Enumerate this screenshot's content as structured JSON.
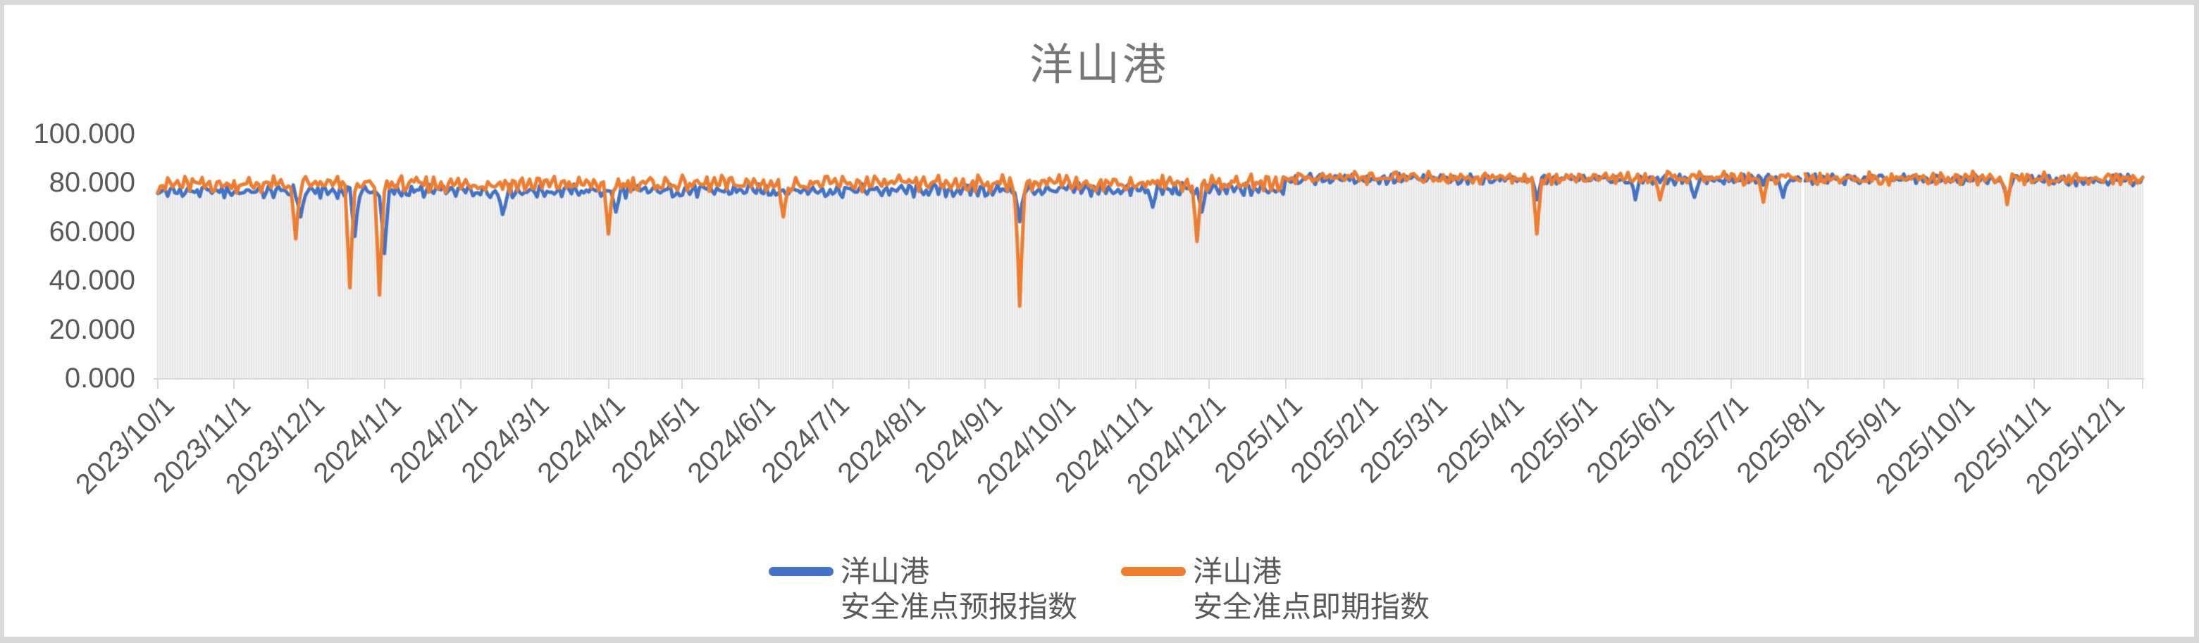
{
  "chart_data": {
    "type": "line",
    "title": "洋山港",
    "grid": false,
    "legend_position": "bottom",
    "ylim": [
      0,
      100
    ],
    "y_axis": {
      "tick_labels": [
        "100.000",
        "80.000",
        "60.000",
        "40.000",
        "20.000",
        "0.000"
      ],
      "tick_values": [
        100,
        80,
        60,
        40,
        20,
        0
      ]
    },
    "x_axis": {
      "start": "2023/10/1",
      "end": "2025/12/1",
      "total_days": 806,
      "tick_labels": [
        "2023/10/1",
        "2023/11/1",
        "2023/12/1",
        "2024/1/1",
        "2024/2/1",
        "2024/3/1",
        "2024/4/1",
        "2024/5/1",
        "2024/6/1",
        "2024/7/1",
        "2024/8/1",
        "2024/9/1",
        "2024/10/1",
        "2024/11/1",
        "2024/12/1",
        "2025/1/1",
        "2025/2/1",
        "2025/3/1",
        "2025/4/1",
        "2025/5/1",
        "2025/6/1",
        "2025/7/1",
        "2025/8/1",
        "2025/9/1",
        "2025/10/1",
        "2025/11/1",
        "2025/12/1"
      ],
      "tick_days": [
        0,
        31,
        61,
        92,
        123,
        152,
        183,
        213,
        244,
        274,
        305,
        336,
        366,
        397,
        427,
        458,
        489,
        517,
        548,
        578,
        609,
        639,
        670,
        701,
        731,
        762,
        792
      ]
    },
    "background_bars": {
      "per": "day",
      "color": "#e3e3e3"
    },
    "gaps_days": [
      668
    ],
    "series": [
      {
        "name": "洋山港 安全准点预报指数",
        "color": "#4472C4",
        "baseline_keypoints": [
          [
            0,
            76.3
          ],
          [
            457,
            77.2
          ],
          [
            458,
            81.6
          ],
          [
            806,
            81.2
          ]
        ],
        "noise_amplitude": 3.1,
        "noise_seed": 1,
        "value_cap": 86.3,
        "dip_keypoints": [
          [
            58,
            66
          ],
          [
            80,
            58
          ],
          [
            92,
            51
          ],
          [
            140,
            67
          ],
          [
            186,
            68
          ],
          [
            350,
            64
          ],
          [
            404,
            70
          ],
          [
            424,
            68
          ],
          [
            560,
            73
          ],
          [
            600,
            73
          ],
          [
            624,
            74
          ],
          [
            660,
            74
          ],
          [
            751,
            72
          ]
        ]
      },
      {
        "name": "洋山港 安全准点即期指数",
        "color": "#ED7D31",
        "baseline_keypoints": [
          [
            0,
            79.2
          ],
          [
            457,
            79.8
          ],
          [
            458,
            82.2
          ],
          [
            806,
            81.6
          ]
        ],
        "noise_amplitude": 3.7,
        "noise_seed": 2,
        "value_cap": 86.3,
        "dip_keypoints": [
          [
            56,
            57
          ],
          [
            78,
            37
          ],
          [
            90,
            34
          ],
          [
            183,
            59
          ],
          [
            254,
            66
          ],
          [
            350,
            29.5
          ],
          [
            422,
            56
          ],
          [
            560,
            59
          ],
          [
            610,
            73
          ],
          [
            652,
            72
          ],
          [
            751,
            71
          ]
        ]
      }
    ],
    "legend": [
      {
        "label_line1": "洋山港",
        "label_line2": "安全准点预报指数",
        "color": "#4472C4"
      },
      {
        "label_line1": "洋山港",
        "label_line2": "安全准点即期指数",
        "color": "#ED7D31"
      }
    ],
    "colors": {
      "title_text": "#767676",
      "axis_text": "#595959",
      "axis_line": "#D9D9D9",
      "plot_background": "#FFFFFF",
      "frame_background": "#D9D9D9"
    }
  }
}
